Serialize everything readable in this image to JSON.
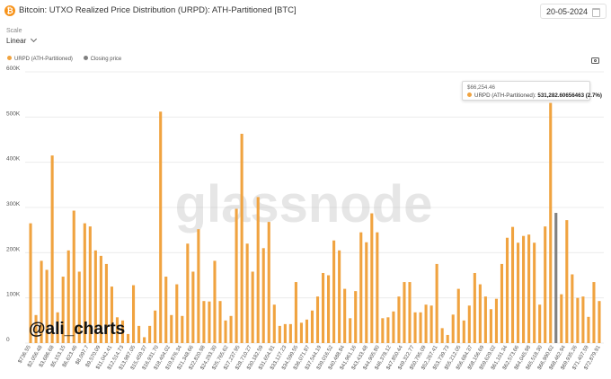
{
  "header": {
    "title": "Bitcoin: UTXO Realized Price Distribution (URPD): ATH-Partitioned [BTC]",
    "coin_symbol": "₿",
    "date": "20-05-2024"
  },
  "controls": {
    "scale_label": "Scale",
    "scale_value": "Linear"
  },
  "legend": {
    "items": [
      {
        "label": "URPD (ATH-Partitioned)",
        "color": "#f0a340"
      },
      {
        "label": "Closing price",
        "color": "#808080"
      }
    ]
  },
  "tooltip": {
    "price": "$66,254.46",
    "series": "URPD (ATH-Partitioned):",
    "value": "531,282.60656463 (2.7%)"
  },
  "watermark": {
    "brand": "glassnode",
    "handle": "@ali_charts"
  },
  "colors": {
    "bar": "#f0a340",
    "closing": "#808080",
    "grid": "#ececec"
  },
  "chart_data": {
    "type": "bar",
    "title": "Bitcoin: UTXO Realized Price Distribution (URPD): ATH-Partitioned [BTC]",
    "ylim": [
      0,
      600000
    ],
    "yticks": [
      "0",
      "100K",
      "200K",
      "300K",
      "400K",
      "500K",
      "600K"
    ],
    "ytick_values": [
      0,
      100000,
      200000,
      300000,
      400000,
      500000,
      600000
    ],
    "grid": true,
    "legend_position": "top-left",
    "xtick_labels": [
      "$736.55",
      "$2,056.48",
      "$3,686.68",
      "$5,153.15",
      "$6,623.46",
      "$8,097.7",
      "$9,570.09",
      "$11,042.41",
      "$12,514.73",
      "$13,987.05",
      "$15,459.37",
      "$16,931.70",
      "$18,404.02",
      "$19,876.34",
      "$21,348.66",
      "$22,820.98",
      "$24,293.30",
      "$25,765.62",
      "$27,237.95",
      "$28,710.27",
      "$30,182.59",
      "$31,654.91",
      "$33,127.23",
      "$34,599.55",
      "$36,071.87",
      "$37,544.19",
      "$39,016.52",
      "$40,488.84",
      "$41,961.16",
      "$43,433.48",
      "$44,905.80",
      "$46,378.12",
      "$47,850.44",
      "$49,322.77",
      "$50,795.09",
      "$52,267.41",
      "$53,739.73",
      "$55,212.05",
      "$56,684.37",
      "$58,156.69",
      "$59,629.02",
      "$61,101.34",
      "$62,573.66",
      "$64,045.98",
      "$65,518.30",
      "$66,990.62",
      "$68,462.94",
      "$69,935.26",
      "$71,407.59",
      "$72,879.91"
    ],
    "series": [
      {
        "name": "URPD (ATH-Partitioned)",
        "values": [
          265000,
          62000,
          182000,
          162000,
          415000,
          68000,
          147000,
          205000,
          293000,
          158000,
          265000,
          258000,
          205000,
          193000,
          175000,
          125000,
          57000,
          50000,
          20000,
          128000,
          38000,
          13000,
          38000,
          72000,
          512000,
          147000,
          62000,
          130000,
          60000,
          220000,
          158000,
          252000,
          93000,
          92000,
          182000,
          93000,
          50000,
          60000,
          297000,
          463000,
          220000,
          158000,
          323000,
          210000,
          268000,
          85000,
          38000,
          42000,
          42000,
          135000,
          45000,
          52000,
          72000,
          103000,
          155000,
          150000,
          227000,
          205000,
          120000,
          55000,
          115000,
          245000,
          223000,
          287000,
          245000,
          55000,
          57000,
          70000,
          103000,
          135000,
          135000,
          68000,
          68000,
          85000,
          83000,
          175000,
          33000,
          18000,
          63000,
          120000,
          50000,
          83000,
          155000,
          130000,
          103000,
          75000,
          98000,
          175000,
          233000,
          257000,
          222000,
          237000,
          240000,
          222000,
          85000,
          258000,
          531282,
          0,
          108000,
          272000,
          152000,
          100000,
          103000,
          58000,
          135000,
          93000
        ]
      },
      {
        "name": "Closing price",
        "values": [
          0,
          0,
          0,
          0,
          0,
          0,
          0,
          0,
          0,
          0,
          0,
          0,
          0,
          0,
          0,
          0,
          0,
          0,
          0,
          0,
          0,
          0,
          0,
          0,
          0,
          0,
          0,
          0,
          0,
          0,
          0,
          0,
          0,
          0,
          0,
          0,
          0,
          0,
          0,
          0,
          0,
          0,
          0,
          0,
          0,
          0,
          0,
          0,
          0,
          0,
          0,
          0,
          0,
          0,
          0,
          0,
          0,
          0,
          0,
          0,
          0,
          0,
          0,
          0,
          0,
          0,
          0,
          0,
          0,
          0,
          0,
          0,
          0,
          0,
          0,
          0,
          0,
          0,
          0,
          0,
          0,
          0,
          0,
          0,
          0,
          0,
          0,
          0,
          0,
          0,
          0,
          0,
          0,
          0,
          0,
          0,
          0,
          288000,
          0,
          0,
          0,
          0,
          0,
          0,
          0,
          0
        ]
      }
    ]
  }
}
